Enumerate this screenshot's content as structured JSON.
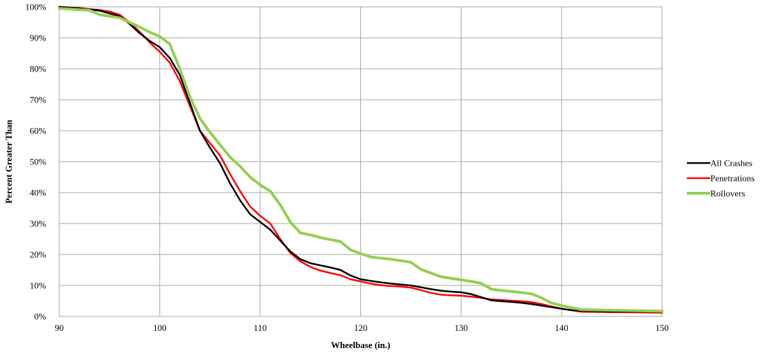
{
  "chart_data": {
    "type": "line",
    "title": "",
    "xlabel": "Wheelbase (in.)",
    "ylabel": "Percent Greater Than",
    "xlim": [
      90,
      150
    ],
    "ylim": [
      0,
      100
    ],
    "x_ticks": [
      90,
      100,
      110,
      120,
      130,
      140,
      150
    ],
    "y_ticks": [
      0,
      10,
      20,
      30,
      40,
      50,
      60,
      70,
      80,
      90,
      100
    ],
    "x_tick_labels": [
      "90",
      "100",
      "110",
      "120",
      "130",
      "140",
      "150"
    ],
    "y_tick_labels": [
      "0%",
      "10%",
      "20%",
      "30%",
      "40%",
      "50%",
      "60%",
      "70%",
      "80%",
      "90%",
      "100%"
    ],
    "grid": true,
    "legend_position": "right",
    "series": [
      {
        "name": "All Crashes",
        "color": "#000000",
        "points": [
          [
            90,
            100
          ],
          [
            92,
            99.5
          ],
          [
            94,
            98.8
          ],
          [
            96,
            97
          ],
          [
            97,
            94.5
          ],
          [
            98,
            91.5
          ],
          [
            99,
            89
          ],
          [
            100,
            87
          ],
          [
            101,
            83.5
          ],
          [
            102,
            78
          ],
          [
            103,
            69
          ],
          [
            104,
            60
          ],
          [
            105,
            54.5
          ],
          [
            106,
            49.5
          ],
          [
            107,
            43
          ],
          [
            108,
            37.5
          ],
          [
            109,
            33
          ],
          [
            110,
            30.5
          ],
          [
            111,
            28
          ],
          [
            112,
            24.5
          ],
          [
            113,
            21
          ],
          [
            114,
            18.5
          ],
          [
            115,
            17.2
          ],
          [
            116,
            16.5
          ],
          [
            117,
            15.8
          ],
          [
            118,
            15
          ],
          [
            119,
            13.2
          ],
          [
            120,
            12
          ],
          [
            121,
            11.5
          ],
          [
            122,
            11
          ],
          [
            123,
            10.6
          ],
          [
            124,
            10.3
          ],
          [
            125,
            10
          ],
          [
            126,
            9.4
          ],
          [
            127,
            8.8
          ],
          [
            128,
            8.3
          ],
          [
            129,
            8
          ],
          [
            130,
            7.8
          ],
          [
            131,
            7.2
          ],
          [
            132,
            6.2
          ],
          [
            133,
            5.2
          ],
          [
            134,
            4.9
          ],
          [
            135,
            4.7
          ],
          [
            136,
            4.4
          ],
          [
            137,
            4
          ],
          [
            138,
            3.5
          ],
          [
            139,
            3
          ],
          [
            140,
            2.5
          ],
          [
            141,
            2
          ],
          [
            142,
            1.8
          ],
          [
            145,
            1.6
          ],
          [
            150,
            1.5
          ]
        ]
      },
      {
        "name": "Penetrations",
        "color": "#ff0000",
        "points": [
          [
            90,
            100
          ],
          [
            92,
            99.6
          ],
          [
            94,
            99
          ],
          [
            95,
            98.5
          ],
          [
            96,
            97.5
          ],
          [
            97,
            95
          ],
          [
            98,
            92
          ],
          [
            99,
            88.5
          ],
          [
            100,
            85.5
          ],
          [
            101,
            82
          ],
          [
            102,
            76
          ],
          [
            103,
            68
          ],
          [
            104,
            60
          ],
          [
            105,
            56
          ],
          [
            106,
            52
          ],
          [
            107,
            46
          ],
          [
            108,
            40.5
          ],
          [
            109,
            35.5
          ],
          [
            110,
            32.5
          ],
          [
            111,
            30
          ],
          [
            112,
            25
          ],
          [
            113,
            20.5
          ],
          [
            114,
            17.8
          ],
          [
            115,
            16
          ],
          [
            116,
            14.8
          ],
          [
            117,
            14
          ],
          [
            118,
            13.3
          ],
          [
            119,
            12
          ],
          [
            120,
            11.3
          ],
          [
            121,
            10.6
          ],
          [
            122,
            10.1
          ],
          [
            123,
            9.8
          ],
          [
            124,
            9.6
          ],
          [
            125,
            9.3
          ],
          [
            126,
            8.5
          ],
          [
            127,
            7.6
          ],
          [
            128,
            7
          ],
          [
            129,
            6.8
          ],
          [
            130,
            6.7
          ],
          [
            131,
            6.4
          ],
          [
            132,
            6
          ],
          [
            133,
            5.5
          ],
          [
            134,
            5.3
          ],
          [
            135,
            5.1
          ],
          [
            136,
            4.9
          ],
          [
            137,
            4.6
          ],
          [
            138,
            4
          ],
          [
            139,
            3.2
          ],
          [
            140,
            2.5
          ],
          [
            141,
            2
          ],
          [
            142,
            1.5
          ],
          [
            145,
            1.4
          ],
          [
            150,
            1.2
          ]
        ]
      },
      {
        "name": "Rollovers",
        "color": "#92d050",
        "points": [
          [
            90,
            99.5
          ],
          [
            91,
            99.3
          ],
          [
            92,
            99.1
          ],
          [
            93,
            98.9
          ],
          [
            94,
            97.5
          ],
          [
            95,
            97
          ],
          [
            96,
            96.5
          ],
          [
            97,
            95
          ],
          [
            98,
            93.5
          ],
          [
            99,
            91.8
          ],
          [
            100,
            90.5
          ],
          [
            101,
            88
          ],
          [
            102,
            80
          ],
          [
            103,
            71
          ],
          [
            104,
            64
          ],
          [
            105,
            59.5
          ],
          [
            106,
            55.5
          ],
          [
            107,
            51.5
          ],
          [
            108,
            48.5
          ],
          [
            109,
            45
          ],
          [
            110,
            42.5
          ],
          [
            111,
            40.5
          ],
          [
            112,
            36
          ],
          [
            113,
            30.5
          ],
          [
            114,
            27
          ],
          [
            115,
            26.3
          ],
          [
            116,
            25.5
          ],
          [
            117,
            24.8
          ],
          [
            118,
            24.2
          ],
          [
            119,
            21.5
          ],
          [
            120,
            20.3
          ],
          [
            121,
            19.2
          ],
          [
            122,
            18.8
          ],
          [
            123,
            18.5
          ],
          [
            124,
            18
          ],
          [
            125,
            17.5
          ],
          [
            126,
            15.2
          ],
          [
            127,
            14
          ],
          [
            128,
            12.8
          ],
          [
            129,
            12.3
          ],
          [
            130,
            11.8
          ],
          [
            131,
            11.3
          ],
          [
            132,
            10.7
          ],
          [
            133,
            8.8
          ],
          [
            134,
            8.4
          ],
          [
            135,
            8.1
          ],
          [
            136,
            7.7
          ],
          [
            137,
            7.3
          ],
          [
            138,
            6
          ],
          [
            139,
            4.3
          ],
          [
            140,
            3.5
          ],
          [
            141,
            2.8
          ],
          [
            142,
            2.2
          ],
          [
            145,
            2
          ],
          [
            150,
            1.7
          ]
        ]
      }
    ]
  }
}
